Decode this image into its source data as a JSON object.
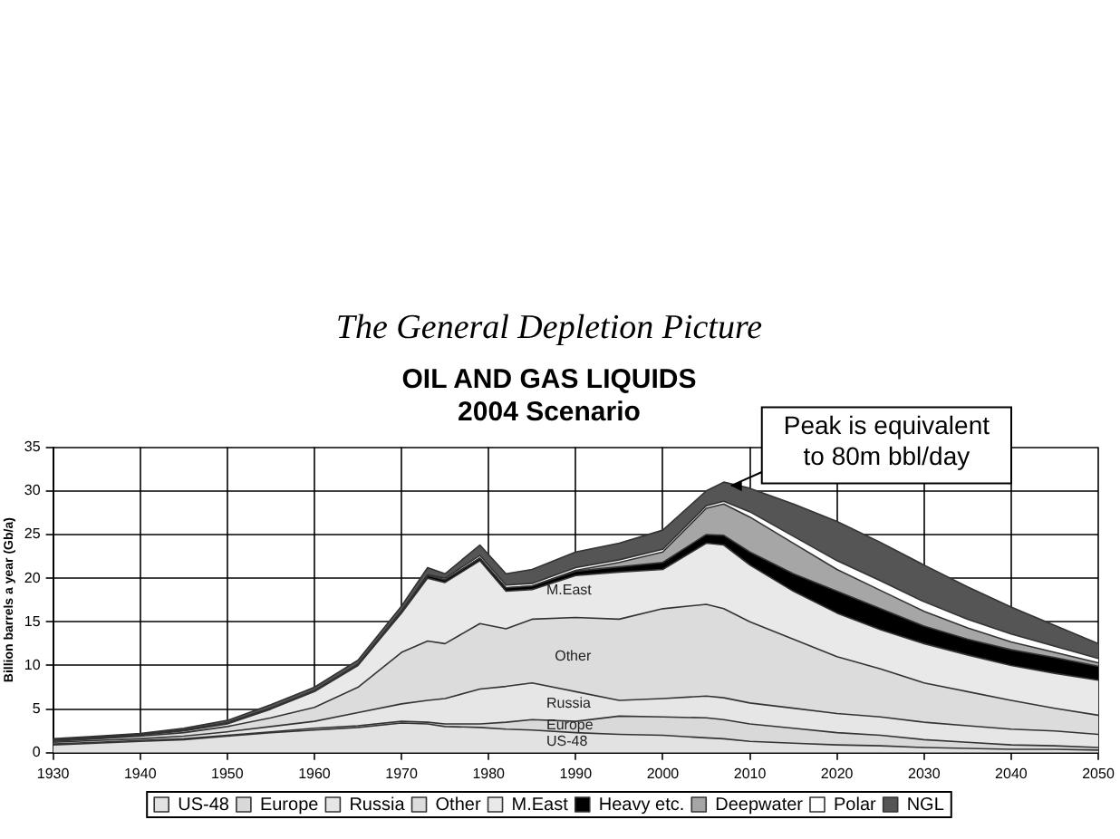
{
  "chart_data": {
    "type": "area",
    "stacked": true,
    "title": "The General Depletion Picture",
    "subtitle": "OIL AND GAS LIQUIDS\n2004 Scenario",
    "ylabel": "Billion barrels a year (Gb/a)",
    "x": [
      1930,
      1935,
      1940,
      1945,
      1950,
      1955,
      1960,
      1965,
      1970,
      1973,
      1975,
      1979,
      1982,
      1985,
      1990,
      1995,
      2000,
      2005,
      2007,
      2010,
      2015,
      2020,
      2025,
      2030,
      2035,
      2040,
      2045,
      2050
    ],
    "xlim": [
      1930,
      2050
    ],
    "xticks": [
      1930,
      1940,
      1950,
      1960,
      1970,
      1980,
      1990,
      2000,
      2010,
      2020,
      2030,
      2040,
      2050
    ],
    "ylim": [
      0,
      35
    ],
    "yticks": [
      0,
      5,
      10,
      15,
      20,
      25,
      30,
      35
    ],
    "grid": true,
    "legend": "bottom",
    "marker": "none",
    "series": [
      {
        "name": "US-48",
        "color": "#e2e2e2",
        "values": [
          0.9,
          1.1,
          1.3,
          1.5,
          1.9,
          2.3,
          2.6,
          2.9,
          3.4,
          3.3,
          3.0,
          2.9,
          2.7,
          2.6,
          2.3,
          2.1,
          2.0,
          1.7,
          1.6,
          1.3,
          1.1,
          0.9,
          0.8,
          0.6,
          0.5,
          0.4,
          0.4,
          0.3
        ]
      },
      {
        "name": "Europe",
        "color": "#d9d9d9",
        "values": [
          0.1,
          0.1,
          0.1,
          0.1,
          0.1,
          0.1,
          0.2,
          0.2,
          0.2,
          0.2,
          0.3,
          0.4,
          0.8,
          1.2,
          1.3,
          2.1,
          2.1,
          2.3,
          2.2,
          2.0,
          1.7,
          1.4,
          1.2,
          0.9,
          0.7,
          0.5,
          0.4,
          0.3
        ]
      },
      {
        "name": "Russia",
        "color": "#e6e6e6",
        "values": [
          0.2,
          0.2,
          0.2,
          0.3,
          0.4,
          0.6,
          0.8,
          1.5,
          2.0,
          2.5,
          2.9,
          4.0,
          4.1,
          4.2,
          3.4,
          1.8,
          2.1,
          2.5,
          2.5,
          2.4,
          2.3,
          2.2,
          2.1,
          2.0,
          1.9,
          1.8,
          1.7,
          1.5
        ]
      },
      {
        "name": "Other",
        "color": "#dcdcdc",
        "values": [
          0.1,
          0.2,
          0.3,
          0.4,
          0.6,
          1.0,
          1.6,
          2.9,
          5.9,
          6.8,
          6.3,
          7.5,
          6.6,
          7.3,
          8.5,
          9.3,
          10.3,
          10.5,
          10.2,
          9.3,
          7.9,
          6.5,
          5.5,
          4.5,
          3.9,
          3.3,
          2.6,
          2.2
        ]
      },
      {
        "name": "M.East",
        "color": "#e9e9e9",
        "values": [
          0.1,
          0.1,
          0.1,
          0.2,
          0.3,
          1.0,
          1.8,
          2.5,
          4.5,
          7.2,
          7.0,
          7.2,
          4.3,
          3.4,
          4.8,
          5.4,
          4.5,
          7.0,
          7.3,
          6.5,
          5.5,
          5.0,
          4.5,
          4.5,
          4.2,
          4.0,
          4.0,
          4.0
        ]
      },
      {
        "name": "Heavy etc.",
        "color": "#000000",
        "values": [
          0.1,
          0.1,
          0.1,
          0.1,
          0.1,
          0.1,
          0.1,
          0.1,
          0.2,
          0.3,
          0.3,
          0.3,
          0.4,
          0.4,
          0.5,
          0.6,
          0.8,
          1.0,
          1.1,
          1.5,
          2.0,
          2.5,
          2.4,
          2.0,
          1.8,
          1.8,
          1.8,
          1.6
        ]
      },
      {
        "name": "Deepwater",
        "color": "#a6a6a6",
        "values": [
          0,
          0,
          0,
          0,
          0,
          0,
          0,
          0,
          0,
          0,
          0,
          0,
          0,
          0,
          0.1,
          0.5,
          1.2,
          3.0,
          3.6,
          4.0,
          3.5,
          2.5,
          2.1,
          1.7,
          1.3,
          0.9,
          0.6,
          0.4
        ]
      },
      {
        "name": "Polar",
        "color": "#ffffff",
        "values": [
          0,
          0,
          0,
          0,
          0,
          0,
          0,
          0,
          0,
          0.1,
          0.2,
          0.3,
          0.3,
          0.3,
          0.3,
          0.3,
          0.3,
          0.3,
          0.3,
          0.6,
          0.8,
          1.0,
          1.1,
          1.1,
          1.0,
          0.9,
          0.7,
          0.5
        ]
      },
      {
        "name": "NGL",
        "color": "#555555",
        "values": [
          0.1,
          0.1,
          0.1,
          0.2,
          0.3,
          0.4,
          0.4,
          0.5,
          0.6,
          0.8,
          0.5,
          1.2,
          1.3,
          1.6,
          1.8,
          1.9,
          2.2,
          1.7,
          2.2,
          2.7,
          3.7,
          4.5,
          4.4,
          4.2,
          3.7,
          3.1,
          2.4,
          1.7
        ]
      }
    ],
    "annotations": [
      "M.East",
      "Other",
      "Russia",
      "Europe",
      "US-48",
      {
        "text": "Peak is equivalent\nto 80m bbl/day",
        "x": 2007,
        "y": 31
      }
    ]
  }
}
